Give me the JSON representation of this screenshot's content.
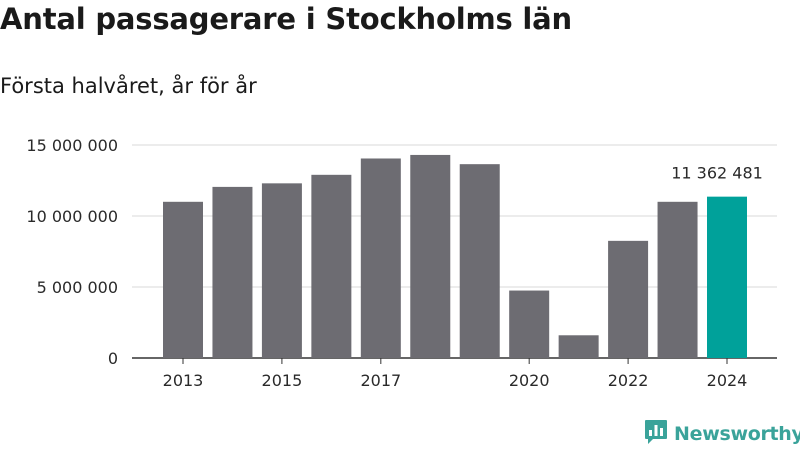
{
  "header": {
    "title": "Antal passagerare i Stockholms län",
    "subtitle": "Första halvåret, år för år"
  },
  "brand": {
    "name": "Newsworthy",
    "icon": "newsworthy-logo-icon",
    "color": "#3aa39a"
  },
  "colors": {
    "bar": "#6d6c72",
    "highlight": "#00a19a",
    "grid": "#d9d9d9",
    "axis": "#333333"
  },
  "chart_data": {
    "type": "bar",
    "categories": [
      "2013",
      "2014",
      "2015",
      "2016",
      "2017",
      "2018",
      "2019",
      "2020",
      "2021",
      "2022",
      "2023",
      "2024"
    ],
    "values": [
      11000000,
      12050000,
      12300000,
      12900000,
      14050000,
      14300000,
      13650000,
      4750000,
      1600000,
      8250000,
      11000000,
      11362481
    ],
    "x_tick_labels": [
      "2013",
      "",
      "2015",
      "",
      "2017",
      "",
      "",
      "2020",
      "",
      "2022",
      "",
      "2024"
    ],
    "y_ticks": [
      0,
      5000000,
      10000000,
      15000000
    ],
    "y_tick_labels": [
      "0",
      "5 000 000",
      "10 000 000",
      "15 000 000"
    ],
    "ylim": [
      0,
      15000000
    ],
    "highlight_index": 11,
    "annotation": "11 362 481",
    "grid": true,
    "xlabel": "",
    "ylabel": ""
  }
}
